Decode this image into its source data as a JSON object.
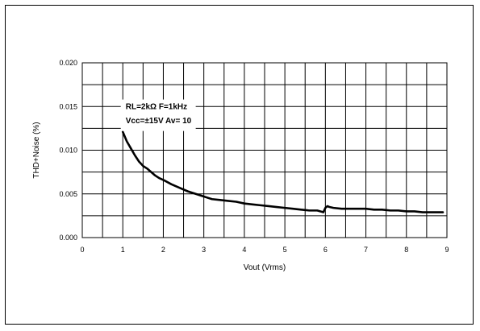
{
  "chart_data": {
    "type": "line",
    "xlabel": "Vout (Vrms)",
    "ylabel": "THD+Noise (%)",
    "xlim": [
      0,
      9
    ],
    "ylim": [
      0,
      0.02
    ],
    "x_ticks": [
      "0",
      "1",
      "2",
      "3",
      "4",
      "5",
      "6",
      "7",
      "8",
      "9"
    ],
    "y_ticks": [
      "0.000",
      "0.005",
      "0.010",
      "0.015",
      "0.020"
    ],
    "grid": true,
    "annotation": [
      "RL=2kΩ  F=1kHz",
      "Vcc=±15V  Av= 10"
    ],
    "series": [
      {
        "color": "#000000",
        "x": [
          1.0,
          1.1,
          1.2,
          1.3,
          1.4,
          1.5,
          1.6,
          1.7,
          1.8,
          1.9,
          2.0,
          2.2,
          2.4,
          2.6,
          2.8,
          3.0,
          3.2,
          3.4,
          3.6,
          3.8,
          4.0,
          4.2,
          4.4,
          4.6,
          4.8,
          5.0,
          5.2,
          5.4,
          5.6,
          5.8,
          5.95,
          6.0,
          6.05,
          6.1,
          6.2,
          6.4,
          6.6,
          6.8,
          7.0,
          7.2,
          7.4,
          7.6,
          7.8,
          8.0,
          8.2,
          8.4,
          8.6,
          8.8,
          8.9
        ],
        "y": [
          0.0121,
          0.011,
          0.0102,
          0.0094,
          0.0087,
          0.0082,
          0.0079,
          0.0075,
          0.0071,
          0.0068,
          0.0066,
          0.0061,
          0.0057,
          0.0053,
          0.005,
          0.0047,
          0.0044,
          0.0043,
          0.0042,
          0.0041,
          0.0039,
          0.0038,
          0.0037,
          0.0036,
          0.0035,
          0.0034,
          0.0033,
          0.0032,
          0.0031,
          0.0031,
          0.0029,
          0.0034,
          0.0036,
          0.0035,
          0.0034,
          0.0033,
          0.0033,
          0.0033,
          0.0033,
          0.0032,
          0.0032,
          0.0031,
          0.0031,
          0.003,
          0.003,
          0.0029,
          0.0029,
          0.0029,
          0.0029
        ]
      }
    ]
  }
}
